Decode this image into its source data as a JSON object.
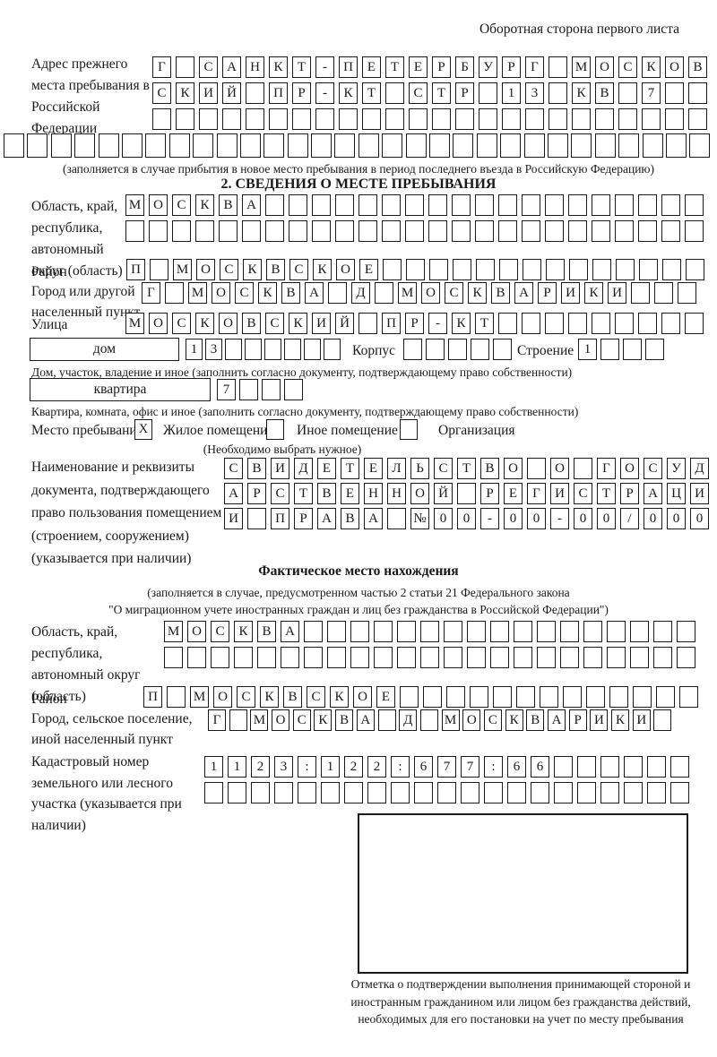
{
  "ink_color": "#1a1a1a",
  "header": {
    "note": "Оборотная сторона первого листа"
  },
  "prev_address": {
    "label": "Адрес прежнего места пребывания в Российской Федерации",
    "rows": [
      {
        "len": 24,
        "text": "Г САНКТ-ПЕТЕРБУРГ МОСКОВ"
      },
      {
        "len": 24,
        "text": "СКИЙ ПР-КТ СТР 13 КВ 7"
      },
      {
        "len": 24,
        "text": ""
      },
      {
        "len": 30,
        "text": ""
      }
    ],
    "note": "(заполняется в случае прибытия в новое место пребывания в период последнего въезда в Российскую Федерацию)"
  },
  "section2": {
    "title": "2. СВЕДЕНИЯ О МЕСТЕ ПРЕБЫВАНИЯ",
    "region": {
      "label": "Область, край, республика, автономный округ (область)",
      "rows": [
        {
          "len": 25,
          "text": "МОСКВА"
        },
        {
          "len": 25,
          "text": ""
        }
      ]
    },
    "district": {
      "label": "Район",
      "row": {
        "len": 25,
        "text": "П МОСКВСКОЕ"
      }
    },
    "city": {
      "label": "Город или другой населенный пункт",
      "row": {
        "len": 24,
        "text": "Г МОСКВА Д МОСКВАРИКИ"
      }
    },
    "street": {
      "label": "Улица",
      "row": {
        "len": 25,
        "text": "МОСКОВСКИЙ ПР-КТ"
      }
    },
    "house": {
      "field_label": "дом",
      "cells": {
        "len": 8,
        "text": "13"
      },
      "korpus_label": "Корпус",
      "korpus_cells": {
        "len": 5,
        "text": ""
      },
      "stroenie_label": "Строение",
      "stroenie_cells": {
        "len": 4,
        "text": "1"
      },
      "note": "Дом, участок, владение и иное (заполнить согласно документу, подтверждающему право собственности)"
    },
    "apartment": {
      "field_label": "квартира",
      "cells": {
        "len": 4,
        "text": "7"
      },
      "note": "Квартира, комната, офис и иное (заполнить согласно документу, подтверждающему право собственности)"
    },
    "stay_type": {
      "label": "Место пребывания:",
      "options": [
        {
          "label": "Жилое помещение",
          "mark": "X"
        },
        {
          "label": "Иное помещение",
          "mark": ""
        },
        {
          "label": "Организация",
          "mark": ""
        }
      ],
      "note": "(Необходимо выбрать нужное)"
    },
    "document": {
      "label": "Наименование и реквизиты документа, подтверждающего право пользования помещением (строением, сооружением) (указывается при наличии)",
      "rows": [
        {
          "len": 21,
          "text": "СВИДЕТЕЛЬСТВО О ГОСУД"
        },
        {
          "len": 21,
          "text": "АРСТВЕННОЙ РЕГИСТРАЦИ"
        },
        {
          "len": 21,
          "text": "И ПРАВА №00-00-00/000"
        }
      ]
    }
  },
  "actual_location": {
    "title": "Фактическое место нахождения",
    "notes": [
      "(заполняется в случае, предусмотренном частью 2 статьи 21 Федерального закона",
      "\"О миграционном учете иностранных граждан и лиц без гражданства в Российской Федерации\")"
    ],
    "region": {
      "label": "Область, край, республика, автономный округ (область)",
      "rows": [
        {
          "len": 23,
          "text": "МОСКВА"
        },
        {
          "len": 23,
          "text": ""
        }
      ]
    },
    "district": {
      "label": "Район",
      "row": {
        "len": 24,
        "text": "П МОСКВСКОЕ"
      }
    },
    "city": {
      "label": "Город, сельское поселение, иной населенный пункт",
      "row": {
        "len": 22,
        "text": "Г МОСКВА Д МОСКВАРИКИ"
      }
    },
    "cadastral": {
      "label": "Кадастровый номер земельного или лесного участка (указывается при наличии)",
      "rows": [
        {
          "len": 21,
          "text": "1123:122:677:66"
        },
        {
          "len": 21,
          "text": ""
        }
      ]
    }
  },
  "stamp": {
    "note": "Отметка о подтверждении выполнения принимающей стороной и иностранным гражданином или лицом без гражданства действий, необходимых для его постановки на учет по месту пребывания"
  }
}
